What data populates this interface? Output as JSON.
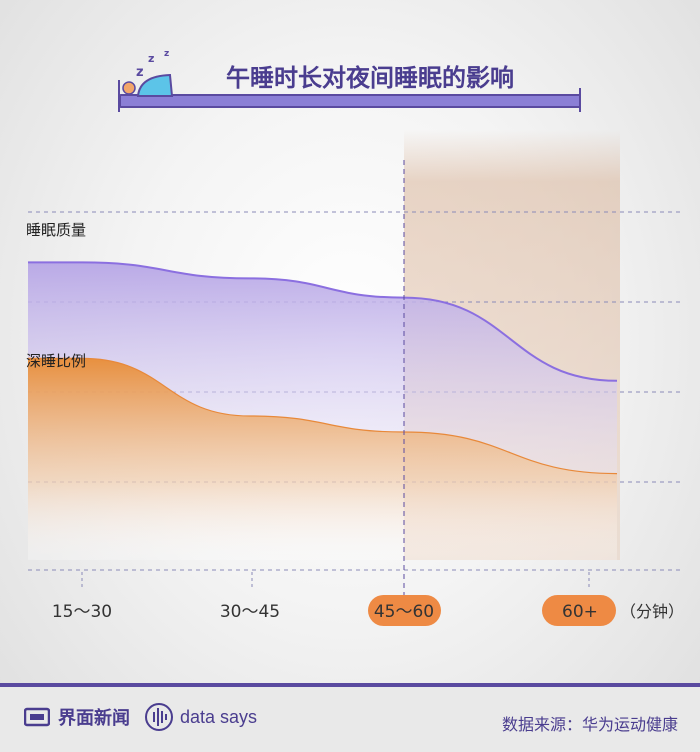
{
  "title": "午睡时长对夜间睡眠的影响",
  "chart_data": {
    "type": "area",
    "categories": [
      "15～30",
      "30～45",
      "45～60",
      "60+"
    ],
    "unit_label": "（分钟）",
    "highlight_categories": [
      "45～60",
      "60+"
    ],
    "series": [
      {
        "name": "睡眠质量",
        "values": [
          3.4,
          3.15,
          2.85,
          1.55
        ],
        "color": "#8b6fe0"
      },
      {
        "name": "深睡比例",
        "values": [
          1.9,
          1.0,
          0.75,
          0.1
        ],
        "color": "#e8893a"
      }
    ],
    "grid": true,
    "colors": {
      "accent": "#ee8a44",
      "purple": "#5a4aa0",
      "title": "#4a3d8f"
    }
  },
  "footer": {
    "brand": "界面新闻",
    "sub_brand": "data says",
    "source": "数据来源：华为运动健康"
  }
}
